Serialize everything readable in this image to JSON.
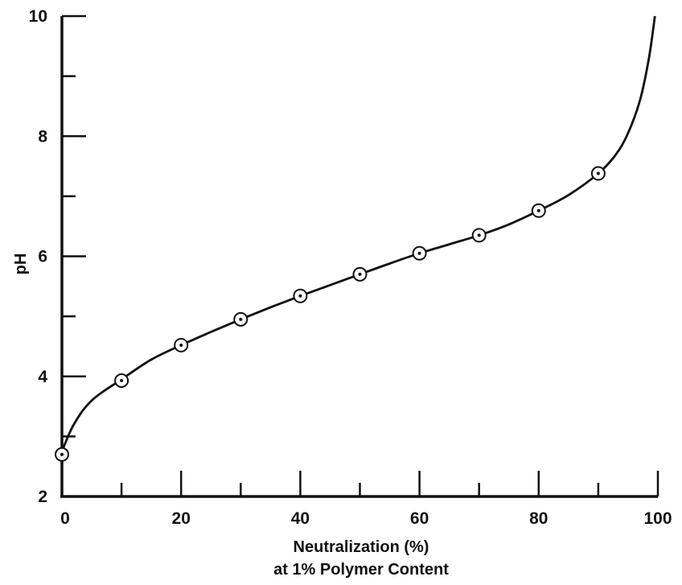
{
  "chart_data": {
    "type": "line",
    "xlabel": "Neutralization (%)",
    "xlabel_line2": "at 1% Polymer Content",
    "ylabel": "pH",
    "xlim": [
      0,
      100
    ],
    "ylim": [
      2,
      10
    ],
    "x_ticks": [
      0,
      20,
      40,
      60,
      80,
      100
    ],
    "y_ticks": [
      2,
      4,
      6,
      8,
      10
    ],
    "x_minor_ticks": [
      10,
      30,
      50,
      70,
      90
    ],
    "y_minor_ticks": [
      3,
      5,
      7,
      9
    ],
    "grid": false,
    "series": [
      {
        "points": [
          {
            "x": 0,
            "y": 2.7
          },
          {
            "x": 10,
            "y": 3.93
          },
          {
            "x": 20,
            "y": 4.52
          },
          {
            "x": 30,
            "y": 4.95
          },
          {
            "x": 40,
            "y": 5.34
          },
          {
            "x": 50,
            "y": 5.7
          },
          {
            "x": 60,
            "y": 6.05
          },
          {
            "x": 70,
            "y": 6.35
          },
          {
            "x": 80,
            "y": 6.76
          },
          {
            "x": 90,
            "y": 7.38
          }
        ],
        "curve": [
          {
            "x": 0,
            "y": 2.75
          },
          {
            "x": 2,
            "y": 3.2
          },
          {
            "x": 5,
            "y": 3.6
          },
          {
            "x": 10,
            "y": 3.95
          },
          {
            "x": 15,
            "y": 4.28
          },
          {
            "x": 20,
            "y": 4.52
          },
          {
            "x": 25,
            "y": 4.74
          },
          {
            "x": 30,
            "y": 4.95
          },
          {
            "x": 35,
            "y": 5.15
          },
          {
            "x": 40,
            "y": 5.34
          },
          {
            "x": 45,
            "y": 5.52
          },
          {
            "x": 50,
            "y": 5.7
          },
          {
            "x": 55,
            "y": 5.88
          },
          {
            "x": 60,
            "y": 6.05
          },
          {
            "x": 65,
            "y": 6.2
          },
          {
            "x": 70,
            "y": 6.35
          },
          {
            "x": 75,
            "y": 6.53
          },
          {
            "x": 80,
            "y": 6.76
          },
          {
            "x": 85,
            "y": 7.02
          },
          {
            "x": 90,
            "y": 7.38
          },
          {
            "x": 93,
            "y": 7.7
          },
          {
            "x": 95,
            "y": 8.05
          },
          {
            "x": 97,
            "y": 8.6
          },
          {
            "x": 98.5,
            "y": 9.3
          },
          {
            "x": 99.5,
            "y": 10
          }
        ]
      }
    ]
  }
}
